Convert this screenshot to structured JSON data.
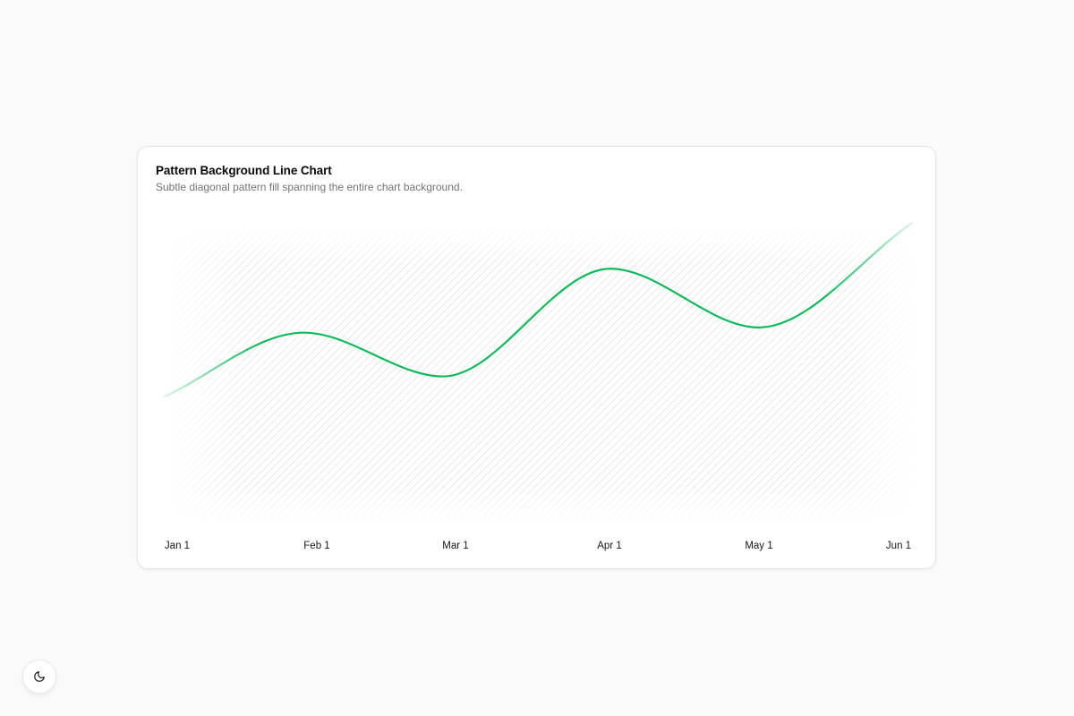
{
  "card": {
    "title": "Pattern Background Line Chart",
    "subtitle": "Subtle diagonal pattern fill spanning the entire chart background."
  },
  "theme_toggle": {
    "icon": "moon-icon"
  },
  "colors": {
    "line": "#10b95c",
    "pattern": "#d4d4d4",
    "card_bg": "#ffffff",
    "page_bg": "#fafafa"
  },
  "chart_data": {
    "type": "line",
    "title": "Pattern Background Line Chart",
    "x_ticks": [
      "Jan 1",
      "Feb 1",
      "Mar 1",
      "Apr 1",
      "May 1",
      "Jun 1"
    ],
    "series": [
      {
        "points": [
          {
            "x": "2024-01-01",
            "y": 152
          },
          {
            "x": "2024-01-31",
            "y": 250
          },
          {
            "x": "2024-03-01",
            "y": 183
          },
          {
            "x": "2024-04-06",
            "y": 348
          },
          {
            "x": "2024-05-08",
            "y": 258
          },
          {
            "x": "2024-06-10",
            "y": 418
          }
        ]
      }
    ],
    "ylim": [
      0,
      480
    ],
    "grid": false,
    "legend": "none"
  }
}
